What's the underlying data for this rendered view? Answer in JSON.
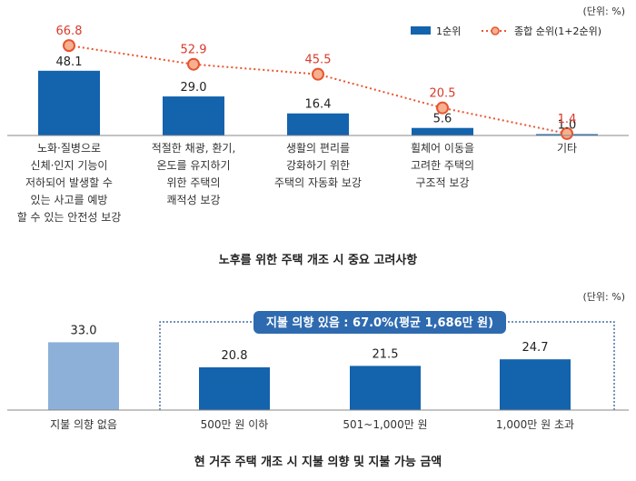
{
  "chart_data": [
    {
      "type": "bar",
      "title": "노후를 위한 주택 개조 시 중요 고려사항",
      "unit": "(단위: %)",
      "categories": [
        [
          "노화·질병으로",
          "신체·인지 기능이",
          "저하되어 발생할 수",
          "있는 사고를 예방",
          "할 수 있는 안전성 보강"
        ],
        [
          "적절한 채광, 환기,",
          "온도를 유지하기",
          "위한 주택의",
          "쾌적성 보강"
        ],
        [
          "생활의 편리를",
          "강화하기 위한",
          "주택의 자동화 보강"
        ],
        [
          "휠체어 이동을",
          "고려한 주택의",
          "구조적 보강"
        ],
        [
          "기타"
        ]
      ],
      "series": [
        {
          "name": "1순위",
          "type": "bar",
          "values": [
            48.1,
            29.0,
            16.4,
            5.6,
            1.0
          ],
          "labels": [
            "48.1",
            "29.0",
            "16.4",
            "5.6",
            "1.0"
          ],
          "color": "#1463ad"
        },
        {
          "name": "종합 순위(1+2순위)",
          "type": "line",
          "values": [
            66.8,
            52.9,
            45.5,
            20.5,
            1.4
          ],
          "labels": [
            "66.8",
            "52.9",
            "45.5",
            "20.5",
            "1.4"
          ],
          "color": "#e8542f"
        }
      ],
      "ylim": [
        0,
        80
      ],
      "legend_position": "top-right",
      "grid": false
    },
    {
      "type": "bar",
      "title": "현 거주 주택 개조 시 지불 의향 및 지불 가능 금액",
      "unit": "(단위: %)",
      "categories": [
        "지불 의향 없음",
        "500만 원 이하",
        "501~1,000만 원",
        "1,000만 원 초과"
      ],
      "values": [
        33.0,
        20.8,
        21.5,
        24.7
      ],
      "labels": [
        "33.0",
        "20.8",
        "21.5",
        "24.7"
      ],
      "colors": [
        "#8db0d8",
        "#1463ad",
        "#1463ad",
        "#1463ad"
      ],
      "annotation": "지불 의향 있음 : 67.0%(평균 1,686만 원)",
      "ylim": [
        0,
        60
      ],
      "grid": false
    }
  ]
}
